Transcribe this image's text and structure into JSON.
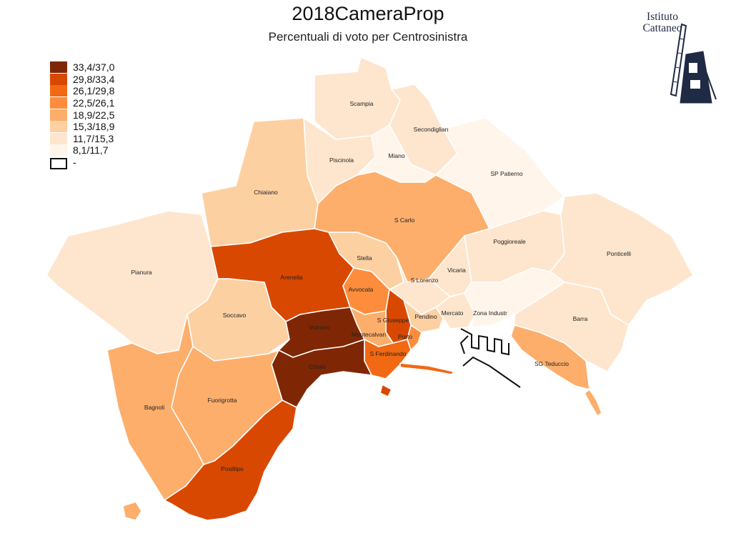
{
  "title": "2018CameraProp",
  "subtitle": "Percentuali di voto per Centrosinistra",
  "logo": {
    "line1": "Istituto",
    "line2": "Cattaneo"
  },
  "legend": [
    {
      "label": "33,4/37,0",
      "color": "#7f2704"
    },
    {
      "label": "29,8/33,4",
      "color": "#d94801"
    },
    {
      "label": "26,1/29,8",
      "color": "#f16913"
    },
    {
      "label": "22,5/26,1",
      "color": "#fd8d3c"
    },
    {
      "label": "18,9/22,5",
      "color": "#fdae6b"
    },
    {
      "label": "15,3/18,9",
      "color": "#fdd0a2"
    },
    {
      "label": "11,7/15,3",
      "color": "#fee6ce"
    },
    {
      "label": "8,1/11,7",
      "color": "#fff5eb"
    },
    {
      "label": "-",
      "color": "#ffffff"
    }
  ],
  "districts": [
    {
      "name": "Scampia",
      "class": "11,7/15,3"
    },
    {
      "name": "Secondiglian",
      "class": "11,7/15,3"
    },
    {
      "name": "Piscinola",
      "class": "11,7/15,3"
    },
    {
      "name": "Miano",
      "class": "8,1/11,7"
    },
    {
      "name": "SP Patierno",
      "class": "8,1/11,7"
    },
    {
      "name": "Chiaiano",
      "class": "15,3/18,9"
    },
    {
      "name": "S Carlo",
      "class": "18,9/22,5"
    },
    {
      "name": "Poggioreale",
      "class": "11,7/15,3"
    },
    {
      "name": "Ponticelli",
      "class": "11,7/15,3"
    },
    {
      "name": "Pianura",
      "class": "11,7/15,3"
    },
    {
      "name": "Stella",
      "class": "15,3/18,9"
    },
    {
      "name": "Arenella",
      "class": "29,8/33,4"
    },
    {
      "name": "Vicaria",
      "class": "11,7/15,3"
    },
    {
      "name": "S Lorenzo",
      "class": "11,7/15,3"
    },
    {
      "name": "Avvocata",
      "class": "22,5/26,1"
    },
    {
      "name": "Soccavo",
      "class": "15,3/18,9"
    },
    {
      "name": "Pendino",
      "class": "15,3/18,9"
    },
    {
      "name": "Mercato",
      "class": "11,7/15,3"
    },
    {
      "name": "Zona Industr",
      "class": "8,1/11,7"
    },
    {
      "name": "S Giuseppe",
      "class": "29,8/33,4"
    },
    {
      "name": "Vomero",
      "class": "33,4/37,0"
    },
    {
      "name": "Montecalvari",
      "class": "18,9/22,5"
    },
    {
      "name": "Porto",
      "class": "22,5/26,1"
    },
    {
      "name": "Barra",
      "class": "11,7/15,3"
    },
    {
      "name": "S Ferdinando",
      "class": "26,1/29,8"
    },
    {
      "name": "SG Teduccio",
      "class": "18,9/22,5"
    },
    {
      "name": "Chiaia",
      "class": "33,4/37,0"
    },
    {
      "name": "Bagnoli",
      "class": "18,9/22,5"
    },
    {
      "name": "Fuorigrotta",
      "class": "18,9/22,5"
    },
    {
      "name": "Posillipo",
      "class": "29,8/33,4"
    }
  ]
}
